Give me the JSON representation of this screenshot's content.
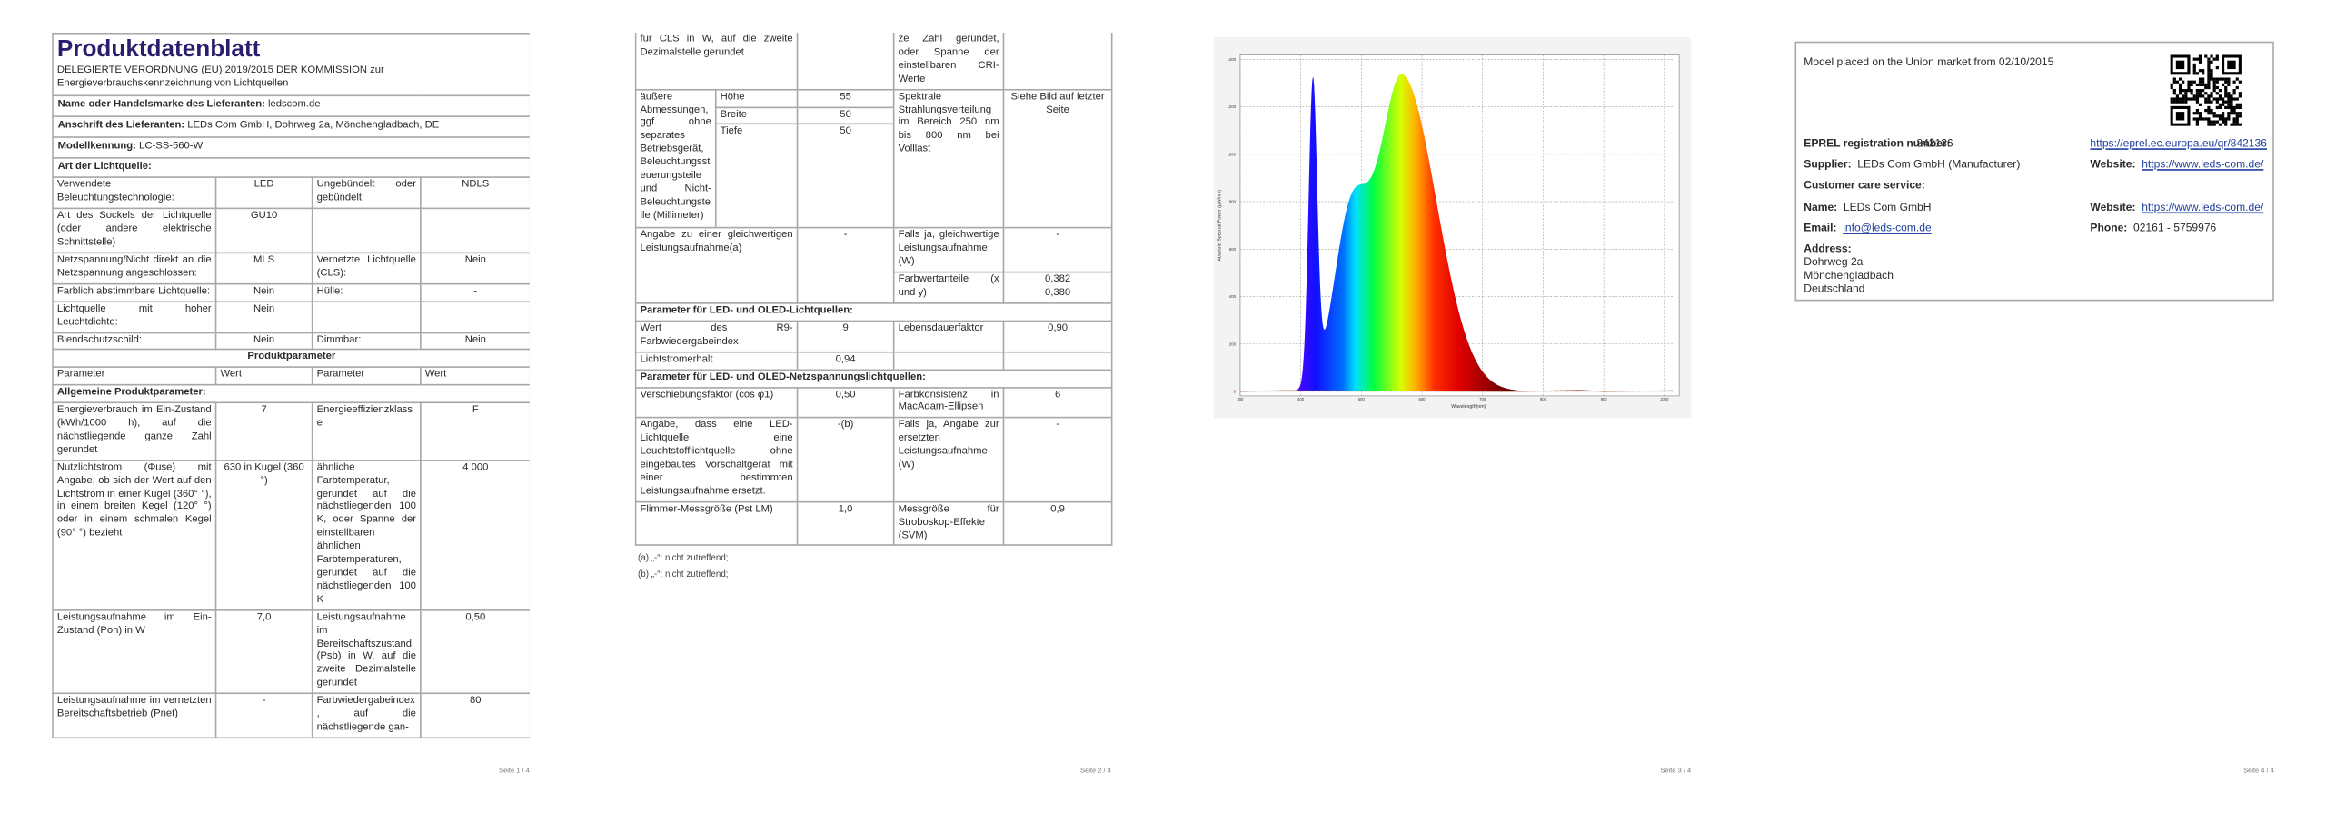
{
  "page1": {
    "title": "Produktdatenblatt",
    "regulation": "DELEGIERTE VERORDNUNG (EU) 2019/2015 DER KOMMISSION zur Energieverbrauchskennzeichnung von Lichtquellen",
    "supplier": [
      {
        "label": "Name oder Handelsmarke des Lieferanten:",
        "value": "ledscom.de"
      },
      {
        "label": "Anschrift des Lieferanten:",
        "value": "LEDs Com GmbH, Dohrweg 2a, Mönchengladbach, DE"
      },
      {
        "label": "Modellkennung:",
        "value": "LC-SS-560-W"
      }
    ],
    "light_source_heading": "Art der Lichtquelle:",
    "light_source_rows": [
      [
        "Verwendete Beleuchtungstechnologie:",
        "LED",
        "Ungebündelt oder gebündelt:",
        "NDLS"
      ],
      [
        "Art des Sockels der Lichtquelle (oder andere elektrische Schnittstelle)",
        "GU10"
      ],
      [
        "Netzspannung/Nicht direkt an die Netzspannung angeschlossen:",
        "MLS",
        "Vernetzte Lichtquelle (CLS):",
        "Nein"
      ],
      [
        "Farblich abstimmbare Lichtquelle:",
        "Nein",
        "Hülle:",
        "-"
      ],
      [
        "Lichtquelle mit hoher Leuchtdichte:",
        "Nein"
      ],
      [
        "Blendschutzschild:",
        "Nein",
        "Dimmbar:",
        "Nein"
      ]
    ],
    "section_title": "Produktparameter",
    "column_headers": [
      "Parameter",
      "Wert",
      "Parameter",
      "Wert"
    ],
    "general_heading": "Allgemeine Produktparameter:",
    "general_rows": [
      [
        "Energieverbrauch im Ein-Zustand (kWh/1000 h), auf die nächstliegende ganze Zahl gerundet",
        "7",
        "Energieeffizienzklasse",
        "F"
      ],
      [
        "Nutzlichtstrom (Φuse) mit Angabe, ob sich der Wert auf den Lichtstrom in einer Kugel (360° °), in einem breiten Kegel (120° °) oder in einem schmalen Kegel (90° °) bezieht",
        "630 in Kugel (360 °)",
        "ähnliche Farbtemperatur, gerundet auf die nächstliegenden 100 K, oder Spanne der einstellbaren ähnlichen Farbtemperaturen, gerundet auf die nächstliegenden 100 K",
        "4 000"
      ],
      [
        "Leistungsaufnahme im Ein-Zustand (Pon) in W",
        "7,0",
        "Leistungsaufnahme im Bereitschaftszustand (Psb) in W, auf die zweite Dezimalstelle gerundet",
        "0,50"
      ],
      [
        "Leistungsaufnahme im vernetzten Bereitschaftsbetrieb (Pnet)",
        "-",
        "Farbwiedergabeindex, auf die nächstliegende gan-",
        "80"
      ]
    ],
    "page_number": "Seite 1 / 4"
  },
  "page2": {
    "continued_row": {
      "left": "für CLS in W, auf die zweite Dezimalstelle gerundet",
      "right": "ze Zahl gerundet, oder Spanne der einstellbaren CRI-Werte"
    },
    "dimensions": {
      "label": "äußere Abmessungen, ggf. ohne separates Betriebsgerät, Beleuchtungssteuerungsteile und Nicht-Beleuchtungsteile (Millimeter)",
      "items": [
        {
          "name": "Höhe",
          "value": "55"
        },
        {
          "name": "Breite",
          "value": "50"
        },
        {
          "name": "Tiefe",
          "value": "50"
        }
      ],
      "spectrum_label": "Spektrale Strahlungsverteilung im Bereich 250 nm bis 800 nm bei Volllast",
      "spectrum_value": "Siehe Bild auf letzter Seite"
    },
    "equivalent_power": {
      "label": "Angabe zu einer gleichwertigen Leistungsaufnahme(a)",
      "value": "-",
      "detail_label": "Falls ja, gleichwertige Leistungsaufnahme (W)",
      "detail_value": "-"
    },
    "chromaticity": {
      "label": "Farbwertanteile (x und y)",
      "values": [
        "0,382",
        "0,380"
      ]
    },
    "led_heading": "Parameter für LED- und OLED-Lichtquellen:",
    "led_rows": [
      [
        "Wert des R9-Farbwiedergabeindex",
        "9",
        "Lebensdauerfaktor",
        "0,90"
      ],
      [
        "Lichtstromerhalt",
        "0,94"
      ]
    ],
    "mains_heading": "Parameter für LED- und OLED-Netzspannungslichtquellen:",
    "mains_rows": [
      [
        "Verschiebungsfaktor (cos φ1)",
        "0,50",
        "Farbkonsistenz in MacAdam-Ellipsen",
        "6"
      ],
      [
        "Angabe, dass eine LED-Lichtquelle eine Leuchtstofflichtquelle ohne eingebautes Vorschaltgerät mit einer bestimmten Leistungsaufnahme ersetzt.",
        "-(b)",
        "Falls ja, Angabe zur ersetzten Leistungsaufnahme (W)",
        "-"
      ],
      [
        "Flimmer-Messgröße (Pst LM)",
        "1,0",
        "Messgröße für Stroboskop-Effekte (SVM)",
        "0,9"
      ]
    ],
    "footnotes": [
      "(a) „-“: nicht zutreffend;",
      "(b) „-“: nicht zutreffend;"
    ],
    "page_number": "Seite 2 / 4"
  },
  "page3": {
    "figure": {
      "x_label": "Wavelength(nm)",
      "y_label": "Absolute Spectral Power (µW/nm)",
      "xlim": [
        300,
        1000
      ],
      "ylim": [
        0,
        1400
      ],
      "xticks": [
        300,
        400,
        500,
        600,
        700,
        800,
        900,
        1000
      ],
      "yticks": [
        0,
        200,
        400,
        600,
        800,
        1000,
        1200,
        1400
      ]
    },
    "page_number": "Seite 3 / 4"
  },
  "page4": {
    "market_date": "Model placed on the Union market from 02/10/2015",
    "eprel": {
      "label": "EPREL registration number:",
      "value": "842136",
      "link": "https://eprel.ec.europa.eu/qr/842136"
    },
    "supplier": {
      "label": "Supplier:",
      "value": "LEDs Com GmbH (Manufacturer)"
    },
    "supplier_website": {
      "label": "Website:",
      "value": "https://www.leds-com.de/"
    },
    "customer_care_heading": "Customer care service:",
    "name": {
      "label": "Name:",
      "value": "LEDs Com GmbH"
    },
    "customer_website": {
      "label": "Website:",
      "value": "https://www.leds-com.de/"
    },
    "email": {
      "label": "Email:",
      "value": "info@leds-com.de"
    },
    "phone": {
      "label": "Phone:",
      "value": "02161 - 5759976"
    },
    "address": {
      "label": "Address:",
      "lines": [
        "Dohrweg 2a",
        "Mönchengladbach",
        "Deutschland"
      ]
    },
    "page_number": "Seite 4 / 4"
  }
}
